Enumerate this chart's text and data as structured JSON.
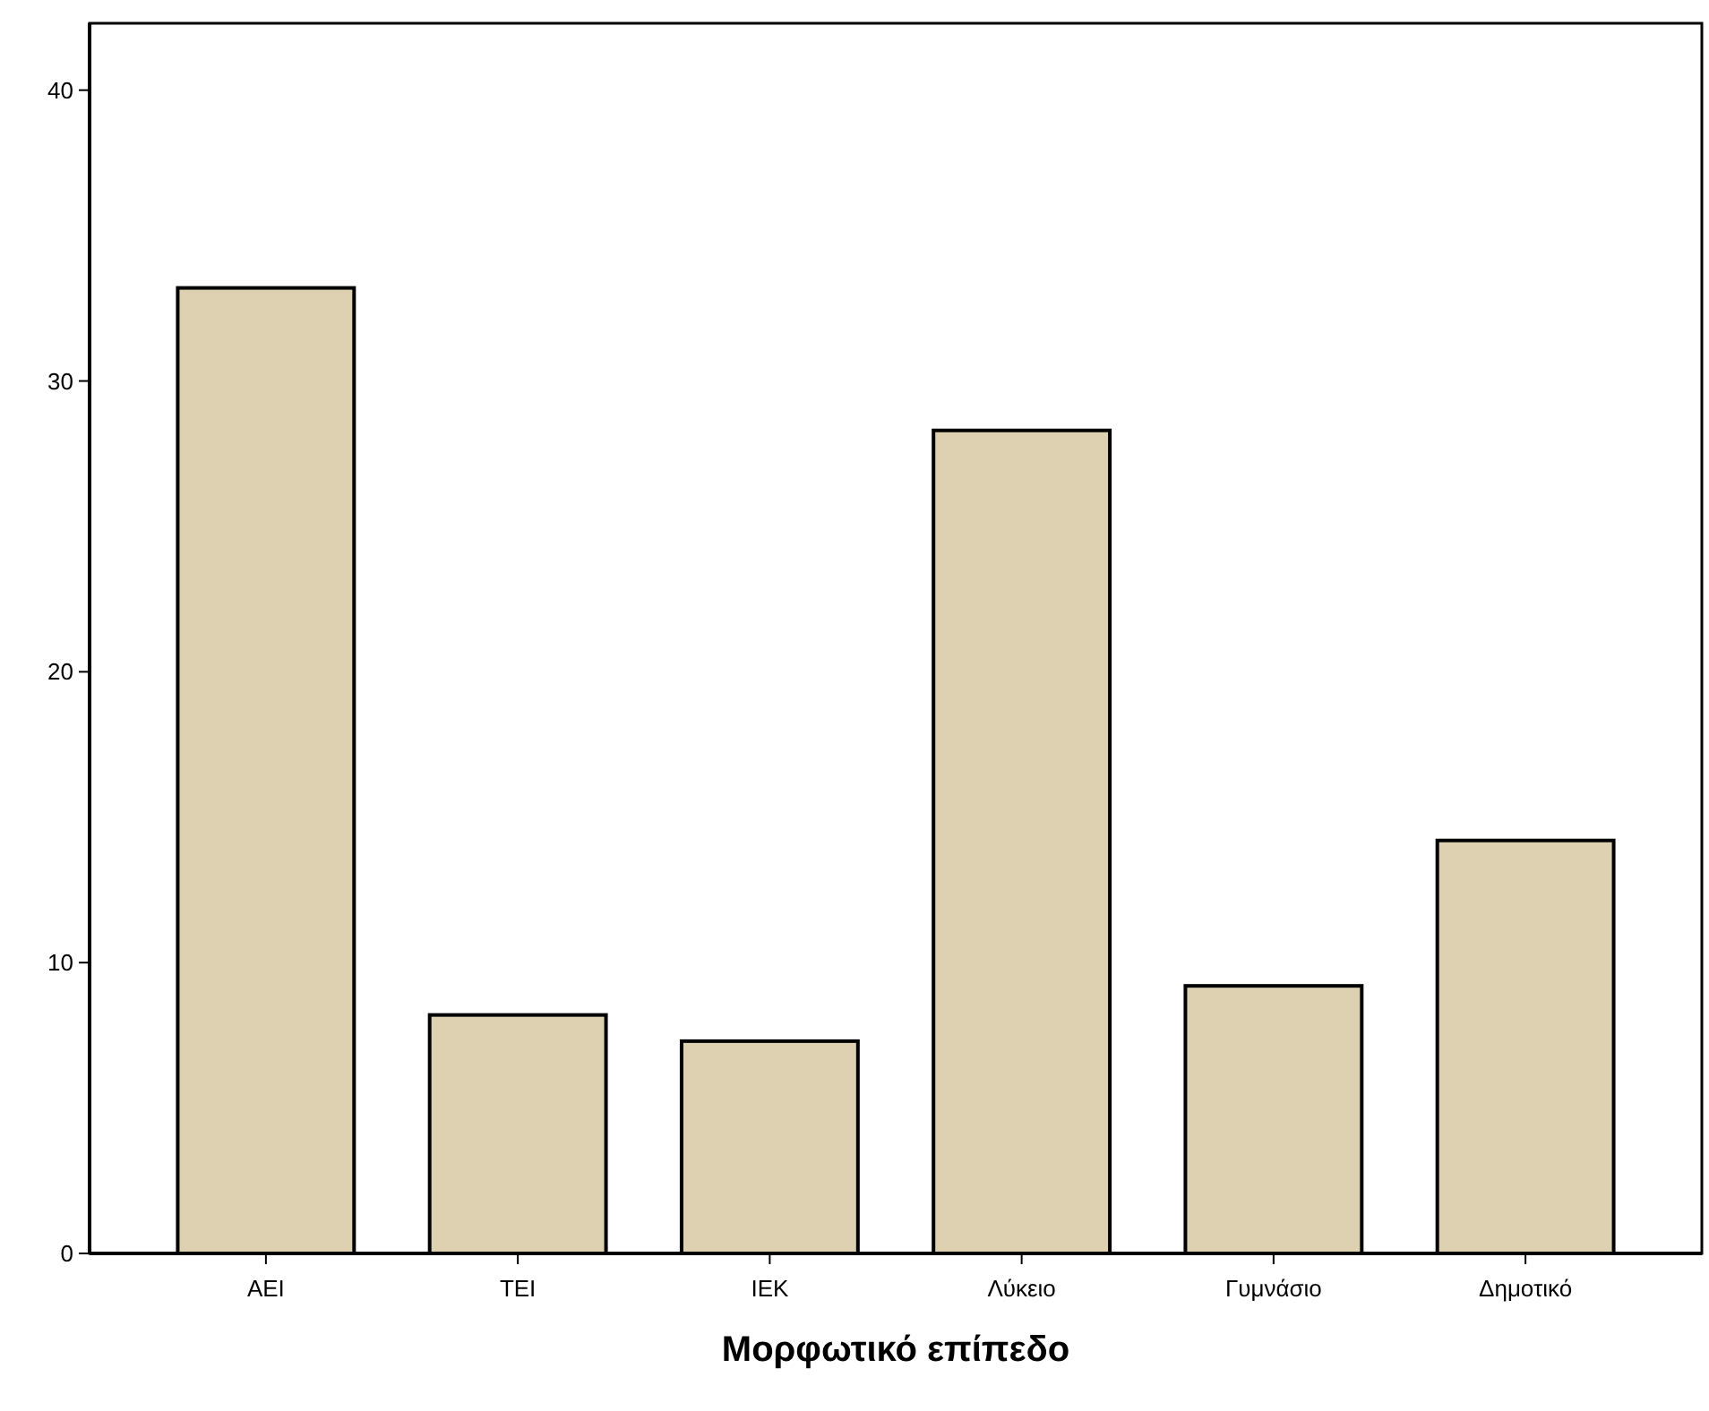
{
  "chart_data": {
    "type": "bar",
    "xlabel": "Μορφωτικό επίπεδο",
    "categories": [
      "ΑΕΙ",
      "ΤΕΙ",
      "ΙΕΚ",
      "Λύκειο",
      "Γυμνάσιο",
      "Δημοτικό"
    ],
    "values": [
      33.2,
      8.2,
      7.3,
      28.3,
      9.2,
      14.2
    ],
    "color": "#ddd1b2",
    "ylim": [
      0,
      42.3
    ],
    "yticks": [
      0,
      10,
      20,
      30,
      40
    ],
    "grid": false
  }
}
